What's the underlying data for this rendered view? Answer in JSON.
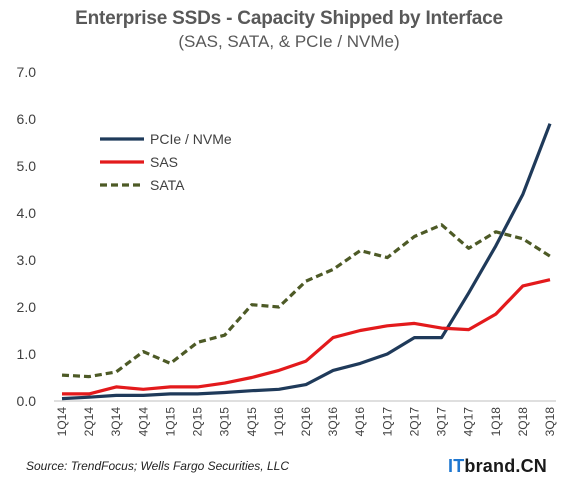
{
  "chart_data": {
    "type": "line",
    "title": "Enterprise SSDs - Capacity Shipped by Interface",
    "subtitle": "(SAS, SATA, & PCIe / NVMe)",
    "x": [
      "1Q14",
      "2Q14",
      "3Q14",
      "4Q14",
      "1Q15",
      "2Q15",
      "3Q15",
      "4Q15",
      "1Q16",
      "2Q16",
      "3Q16",
      "4Q16",
      "1Q17",
      "2Q17",
      "3Q17",
      "4Q17",
      "1Q18",
      "2Q18",
      "3Q18"
    ],
    "yticks": [
      "0.0",
      "1.0",
      "2.0",
      "3.0",
      "4.0",
      "5.0",
      "6.0",
      "7.0"
    ],
    "ylim": [
      0,
      7
    ],
    "grid": false,
    "legend_position": "top-left",
    "series": [
      {
        "name": "PCIe / NVMe",
        "color": "#1f3a5a",
        "dash": "solid",
        "values": [
          0.05,
          0.08,
          0.12,
          0.12,
          0.15,
          0.15,
          0.18,
          0.22,
          0.25,
          0.35,
          0.65,
          0.8,
          1.0,
          1.35,
          1.35,
          2.3,
          3.3,
          4.4,
          5.9
        ]
      },
      {
        "name": "SAS",
        "color": "#e31a1c",
        "dash": "solid",
        "values": [
          0.15,
          0.15,
          0.3,
          0.25,
          0.3,
          0.3,
          0.38,
          0.5,
          0.65,
          0.85,
          1.35,
          1.5,
          1.6,
          1.65,
          1.55,
          1.52,
          1.85,
          2.45,
          2.58
        ]
      },
      {
        "name": "SATA",
        "color": "#4d5a26",
        "dash": "dashed",
        "values": [
          0.55,
          0.52,
          0.62,
          1.05,
          0.8,
          1.25,
          1.4,
          2.05,
          2.0,
          2.55,
          2.8,
          3.2,
          3.05,
          3.5,
          3.75,
          3.25,
          3.6,
          3.45,
          3.08
        ]
      }
    ]
  },
  "source": "Source: TrendFocus; Wells Fargo Securities, LLC",
  "brand": {
    "it": "IT",
    "rest": "brand.CN"
  }
}
